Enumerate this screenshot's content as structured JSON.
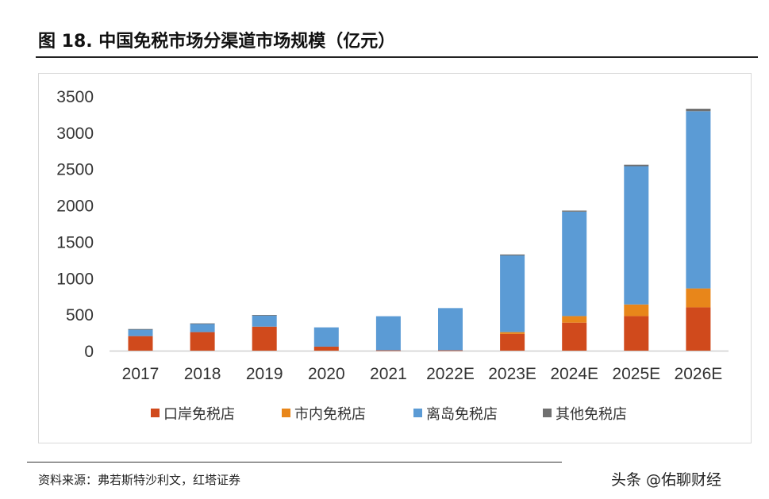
{
  "title": "图 18. 中国免税市场分渠道市场规模（亿元）",
  "source": "资料来源：弗若斯特沙利文，红塔证券",
  "watermark": "头条 @佑聊财经",
  "chart_data": {
    "type": "bar",
    "stacked": true,
    "title": "图 18. 中国免税市场分渠道市场规模（亿元）",
    "categories": [
      "2017",
      "2018",
      "2019",
      "2020",
      "2021",
      "2022E",
      "2023E",
      "2024E",
      "2025E",
      "2026E"
    ],
    "series": [
      {
        "name": "口岸免税店",
        "color": "#d04a1c",
        "values": [
          200,
          255,
          330,
          55,
          5,
          5,
          230,
          385,
          475,
          595
        ]
      },
      {
        "name": "市内免税店",
        "color": "#e8861a",
        "values": [
          0,
          0,
          0,
          0,
          0,
          0,
          25,
          90,
          160,
          260
        ]
      },
      {
        "name": "离岛免税店",
        "color": "#5b9bd5",
        "values": [
          95,
          115,
          155,
          265,
          468,
          580,
          1053,
          1435,
          1900,
          2435
        ]
      },
      {
        "name": "其他免税店",
        "color": "#707070",
        "values": [
          2,
          5,
          5,
          0,
          0,
          0,
          14,
          15,
          20,
          35
        ]
      }
    ],
    "ylim": [
      0,
      3500
    ],
    "yticks": [
      0,
      500,
      1000,
      1500,
      2000,
      2500,
      3000,
      3500
    ],
    "grid": false,
    "legend": "bottom"
  }
}
